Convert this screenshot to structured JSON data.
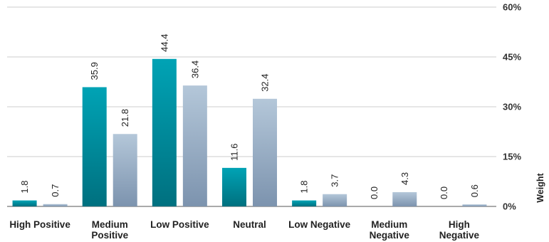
{
  "chart_data": {
    "type": "bar",
    "categories": [
      "High Positive",
      "Medium Positive",
      "Low Positive",
      "Neutral",
      "Low Negative",
      "Medium Negative",
      "High Negative"
    ],
    "category_lines": [
      [
        "High Positive"
      ],
      [
        "Medium",
        "Positive"
      ],
      [
        "Low Positive"
      ],
      [
        "Neutral"
      ],
      [
        "Low Negative"
      ],
      [
        "Medium",
        "Negative"
      ],
      [
        "High",
        "Negative"
      ]
    ],
    "series": [
      {
        "values": [
          1.8,
          35.9,
          44.4,
          11.6,
          1.8,
          0.0,
          0.0
        ],
        "colors": [
          "#00a3b5",
          "#00707f"
        ]
      },
      {
        "values": [
          0.7,
          21.8,
          36.4,
          32.4,
          3.7,
          4.3,
          0.6
        ],
        "colors": [
          "#b4c7d9",
          "#7c93ae"
        ]
      }
    ],
    "title": "",
    "xlabel": "",
    "ylabel": "Weight",
    "ylim": [
      0,
      60
    ],
    "yticks": [
      0,
      15,
      30,
      45,
      60
    ],
    "ytick_labels": [
      "0%",
      "15%",
      "30%",
      "45%",
      "60%"
    ],
    "y_axis_position": "right",
    "grid": true,
    "gridline_color": "#cccccc"
  }
}
